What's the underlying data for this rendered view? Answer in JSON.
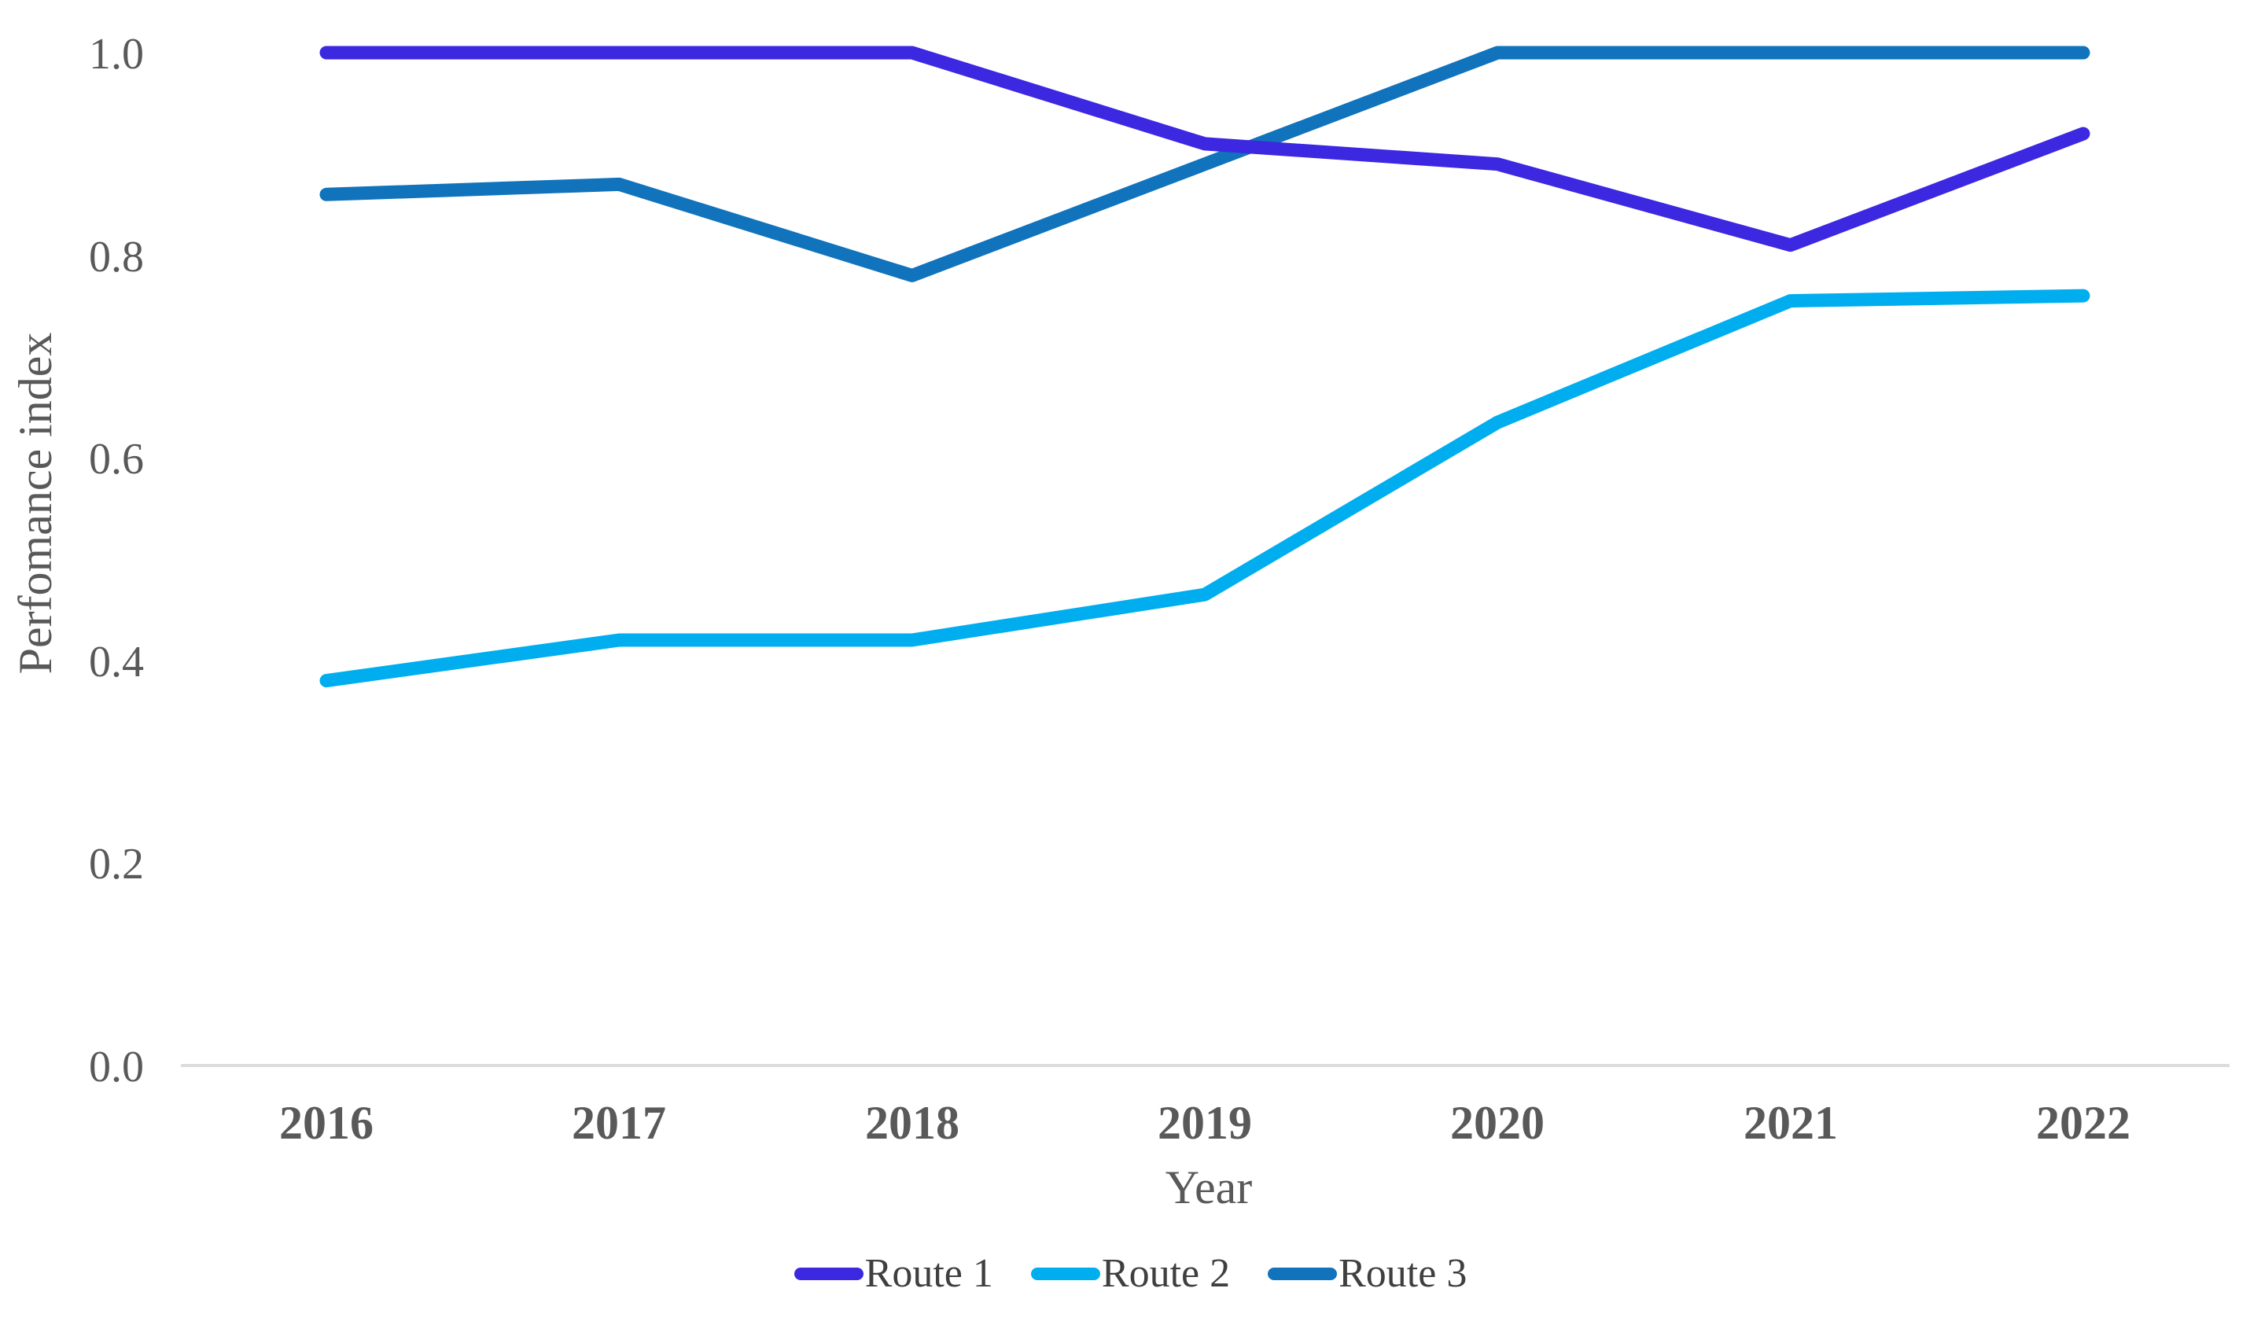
{
  "chart_data": {
    "type": "line",
    "title": "",
    "xlabel": "Year",
    "ylabel": "Perfomance index",
    "categories": [
      "2016",
      "2017",
      "2018",
      "2019",
      "2020",
      "2021",
      "2022"
    ],
    "y_tick_labels": [
      "1.0",
      "0.8",
      "0.6",
      "0.4",
      "0.2",
      "0.0"
    ],
    "ylim": [
      0.0,
      1.0
    ],
    "grid": "off",
    "legend_position": "bottom-center",
    "axis_line_color": "#dcdcdc",
    "tick_text_color": "#595959",
    "legend_text_color": "#3f3f3f",
    "series": [
      {
        "name": "Route 1",
        "color": "#3c28e1",
        "values": [
          1.0,
          1.0,
          1.0,
          0.91,
          0.89,
          0.81,
          0.92
        ]
      },
      {
        "name": "Route 2",
        "color": "#00aeef",
        "values": [
          0.38,
          0.42,
          0.42,
          0.465,
          0.635,
          0.755,
          0.76
        ]
      },
      {
        "name": "Route 3",
        "color": "#1173bc",
        "values": [
          0.86,
          0.87,
          0.78,
          0.89,
          1.0,
          1.0,
          1.0
        ]
      }
    ]
  }
}
